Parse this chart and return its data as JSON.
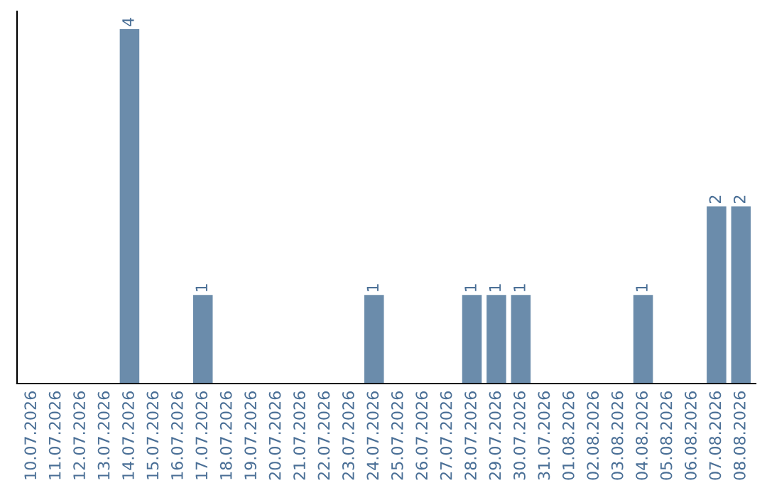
{
  "chart_data": {
    "type": "bar",
    "categories": [
      "10.07.2026",
      "11.07.2026",
      "12.07.2026",
      "13.07.2026",
      "14.07.2026",
      "15.07.2026",
      "16.07.2026",
      "17.07.2026",
      "18.07.2026",
      "19.07.2026",
      "20.07.2026",
      "21.07.2026",
      "22.07.2026",
      "23.07.2026",
      "24.07.2026",
      "25.07.2026",
      "26.07.2026",
      "27.07.2026",
      "28.07.2026",
      "29.07.2026",
      "30.07.2026",
      "31.07.2026",
      "01.08.2026",
      "02.08.2026",
      "03.08.2026",
      "04.08.2026",
      "05.08.2026",
      "06.08.2026",
      "07.08.2026",
      "08.08.2026"
    ],
    "values": [
      0,
      0,
      0,
      0,
      4,
      0,
      0,
      1,
      0,
      0,
      0,
      0,
      0,
      0,
      1,
      0,
      0,
      0,
      1,
      1,
      1,
      0,
      0,
      0,
      0,
      1,
      0,
      0,
      2,
      2
    ],
    "value_labels": [
      null,
      null,
      null,
      null,
      "4",
      null,
      null,
      "1",
      null,
      null,
      null,
      null,
      null,
      null,
      "1",
      null,
      null,
      null,
      "1",
      "1",
      "1",
      null,
      null,
      null,
      null,
      "1",
      null,
      null,
      "2",
      "2"
    ],
    "color": "#6b8cab",
    "tick_labels": "x",
    "grid": false,
    "legend": false
  }
}
